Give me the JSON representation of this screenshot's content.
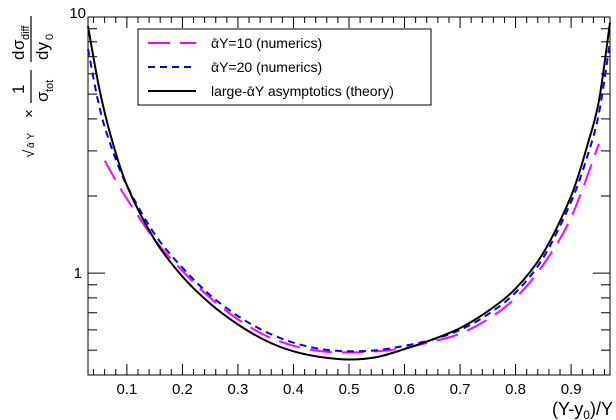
{
  "chart_data": {
    "type": "line",
    "xlabel": "(Y-y0)/Y",
    "ylabel": "sqrt(ᾱY) × (1/σtot) dσdiff/dy0",
    "xlabel_parts": {
      "main": "(Y-y",
      "sub": "0",
      "tail": ")/Y"
    },
    "ylabel_parts": {
      "root": "√",
      "root_arg": "ᾱ Y",
      "times": "×",
      "one": "1",
      "sigma": "σ",
      "tot": "tot",
      "d": "d",
      "diff": "diff",
      "dy": "dy",
      "zero": "0"
    },
    "xlim": [
      0.03,
      0.97
    ],
    "ylim": [
      0.4,
      10
    ],
    "yscale": "log",
    "grid": false,
    "legend_position": "top-left",
    "x_ticks": [
      "0.1",
      "0.2",
      "0.3",
      "0.4",
      "0.5",
      "0.6",
      "0.7",
      "0.8",
      "0.9"
    ],
    "y_ticks": [
      "1",
      "10"
    ],
    "series": [
      {
        "name": "ᾱY=10 (numerics)",
        "color": "#ff00ff",
        "dash": "long-dash",
        "x": [
          0.06,
          0.08,
          0.1,
          0.15,
          0.2,
          0.25,
          0.3,
          0.35,
          0.4,
          0.45,
          0.5,
          0.55,
          0.6,
          0.65,
          0.7,
          0.75,
          0.8,
          0.85,
          0.9,
          0.95
        ],
        "y": [
          2.75,
          2.3,
          1.95,
          1.35,
          1.02,
          0.8,
          0.66,
          0.57,
          0.52,
          0.495,
          0.49,
          0.495,
          0.51,
          0.54,
          0.58,
          0.66,
          0.8,
          1.08,
          1.65,
          3.2
        ]
      },
      {
        "name": "ᾱY=20 (numerics)",
        "color": "#0000ff",
        "dash": "short-dash",
        "x": [
          0.03,
          0.05,
          0.07,
          0.1,
          0.15,
          0.2,
          0.25,
          0.3,
          0.35,
          0.4,
          0.45,
          0.5,
          0.55,
          0.6,
          0.65,
          0.7,
          0.75,
          0.8,
          0.85,
          0.9,
          0.93,
          0.95,
          0.97
        ],
        "y": [
          7.5,
          4.5,
          3.2,
          2.2,
          1.42,
          1.05,
          0.82,
          0.68,
          0.59,
          0.535,
          0.505,
          0.495,
          0.5,
          0.52,
          0.55,
          0.6,
          0.69,
          0.84,
          1.15,
          1.9,
          2.9,
          4.2,
          8.0
        ]
      },
      {
        "name": "large-ᾱY asymptotics (theory)",
        "color": "#000000",
        "dash": "solid",
        "x": [
          0.03,
          0.05,
          0.07,
          0.1,
          0.15,
          0.2,
          0.25,
          0.3,
          0.35,
          0.4,
          0.45,
          0.5,
          0.55,
          0.6,
          0.65,
          0.7,
          0.75,
          0.8,
          0.85,
          0.9,
          0.93,
          0.95,
          0.97
        ],
        "y": [
          9.2,
          5.3,
          3.5,
          2.2,
          1.35,
          0.97,
          0.76,
          0.63,
          0.545,
          0.495,
          0.47,
          0.46,
          0.47,
          0.505,
          0.55,
          0.61,
          0.71,
          0.87,
          1.2,
          2.0,
          3.2,
          4.7,
          9.5
        ]
      }
    ]
  }
}
